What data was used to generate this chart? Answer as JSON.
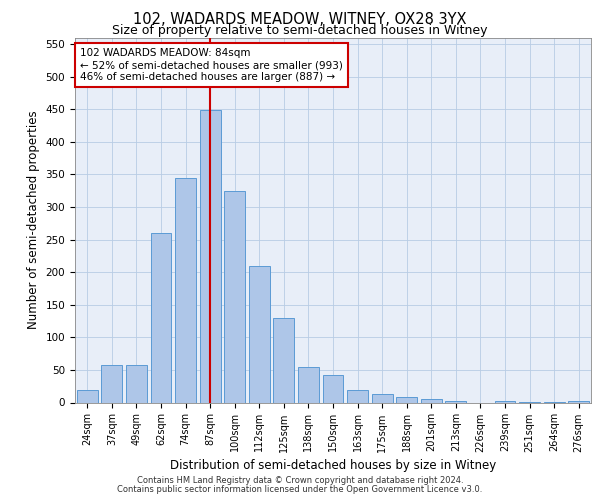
{
  "title_line1": "102, WADARDS MEADOW, WITNEY, OX28 3YX",
  "title_line2": "Size of property relative to semi-detached houses in Witney",
  "xlabel": "Distribution of semi-detached houses by size in Witney",
  "ylabel": "Number of semi-detached properties",
  "categories": [
    "24sqm",
    "37sqm",
    "49sqm",
    "62sqm",
    "74sqm",
    "87sqm",
    "100sqm",
    "112sqm",
    "125sqm",
    "138sqm",
    "150sqm",
    "163sqm",
    "175sqm",
    "188sqm",
    "201sqm",
    "213sqm",
    "226sqm",
    "239sqm",
    "251sqm",
    "264sqm",
    "276sqm"
  ],
  "values": [
    19,
    57,
    57,
    260,
    345,
    449,
    325,
    210,
    130,
    55,
    42,
    19,
    13,
    8,
    5,
    2,
    0,
    3,
    1,
    1,
    3
  ],
  "bar_color": "#aec6e8",
  "bar_edge_color": "#5b9bd5",
  "vline_x_index": 5,
  "vline_color": "#cc0000",
  "annotation_text": "102 WADARDS MEADOW: 84sqm\n← 52% of semi-detached houses are smaller (993)\n46% of semi-detached houses are larger (887) →",
  "annotation_box_color": "#ffffff",
  "annotation_box_edge": "#cc0000",
  "ylim": [
    0,
    560
  ],
  "yticks": [
    0,
    50,
    100,
    150,
    200,
    250,
    300,
    350,
    400,
    450,
    500,
    550
  ],
  "background_color": "#e8eef8",
  "footer_line1": "Contains HM Land Registry data © Crown copyright and database right 2024.",
  "footer_line2": "Contains public sector information licensed under the Open Government Licence v3.0."
}
